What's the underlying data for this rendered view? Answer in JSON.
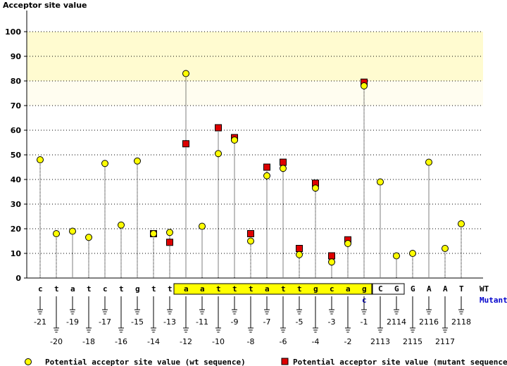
{
  "chart_data": {
    "type": "scatter",
    "ylabel": "Acceptor site value",
    "ylim": [
      0,
      100
    ],
    "yticks": [
      0,
      10,
      20,
      30,
      40,
      50,
      60,
      70,
      80,
      90,
      100
    ],
    "grid": true,
    "highlight_band": [
      80,
      100
    ],
    "faint_band": [
      70,
      80
    ],
    "row_labels": {
      "wt": "WT",
      "mutant": "Mutant"
    },
    "colors": {
      "wt": "#ffff00",
      "mutant": "#dd0000",
      "exon_box": "#ffff00",
      "band": "#fffbd0",
      "mutant_label": "#0000cc"
    },
    "positions": [
      {
        "pos": "-21",
        "base": "c",
        "wt": 48
      },
      {
        "pos": "-20",
        "base": "t",
        "wt": 18
      },
      {
        "pos": "-19",
        "base": "a",
        "wt": 19
      },
      {
        "pos": "-18",
        "base": "t",
        "wt": 16.5
      },
      {
        "pos": "-17",
        "base": "c",
        "wt": 46.5
      },
      {
        "pos": "-16",
        "base": "t",
        "wt": 21.5
      },
      {
        "pos": "-15",
        "base": "g",
        "wt": 47.5
      },
      {
        "pos": "-14",
        "base": "t",
        "wt": 18,
        "mut": 18
      },
      {
        "pos": "-13",
        "base": "t",
        "wt": 18.5,
        "mut": 14.5
      },
      {
        "pos": "-12",
        "base": "a",
        "wt": 83,
        "mut": 54.5,
        "box": "intron"
      },
      {
        "pos": "-11",
        "base": "a",
        "wt": 21,
        "box": "intron"
      },
      {
        "pos": "-10",
        "base": "t",
        "wt": 50.5,
        "mut": 61,
        "box": "intron"
      },
      {
        "pos": "-9",
        "base": "t",
        "wt": 56,
        "mut": 57,
        "box": "intron"
      },
      {
        "pos": "-8",
        "base": "t",
        "wt": 15,
        "mut": 18,
        "box": "intron"
      },
      {
        "pos": "-7",
        "base": "a",
        "wt": 41.5,
        "mut": 45,
        "box": "intron"
      },
      {
        "pos": "-6",
        "base": "t",
        "wt": 44.5,
        "mut": 47,
        "box": "intron"
      },
      {
        "pos": "-5",
        "base": "t",
        "wt": 9.5,
        "mut": 12,
        "box": "intron"
      },
      {
        "pos": "-4",
        "base": "g",
        "wt": 36.5,
        "mut": 38.5,
        "box": "intron"
      },
      {
        "pos": "-3",
        "base": "c",
        "wt": 6.5,
        "mut": 9,
        "box": "intron"
      },
      {
        "pos": "-2",
        "base": "a",
        "wt": 14,
        "mut": 15.5,
        "box": "intron"
      },
      {
        "pos": "-1",
        "base": "g",
        "wt": 78,
        "mut": 79.5,
        "box": "intron",
        "mutant_base": "c"
      },
      {
        "pos": "2113",
        "base": "C",
        "wt": 39,
        "box": "exon"
      },
      {
        "pos": "2114",
        "base": "G",
        "wt": 9,
        "box": "exon"
      },
      {
        "pos": "2115",
        "base": "G",
        "wt": 10
      },
      {
        "pos": "2116",
        "base": "A",
        "wt": 47
      },
      {
        "pos": "2117",
        "base": "A",
        "wt": 12
      },
      {
        "pos": "2118",
        "base": "T",
        "wt": 22
      }
    ],
    "legend": [
      {
        "key": "wt",
        "label": "Potential acceptor site value (wt sequence)"
      },
      {
        "key": "mutant",
        "label": "Potential acceptor site value (mutant sequence)"
      }
    ]
  }
}
